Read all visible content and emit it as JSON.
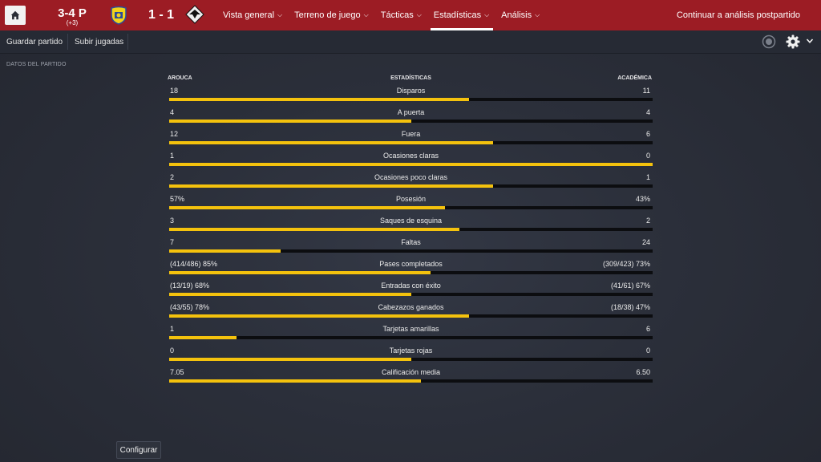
{
  "topbar": {
    "formation": "3-4 P",
    "formation_delta": "(+3)",
    "match_score": "1 - 1",
    "nav": [
      {
        "label": "Vista general",
        "active": false
      },
      {
        "label": "Terreno de juego",
        "active": false
      },
      {
        "label": "Tácticas",
        "active": false
      },
      {
        "label": "Estadísticas",
        "active": true
      },
      {
        "label": "Análisis",
        "active": false
      }
    ],
    "continue_label": "Continuar a análisis postpartido"
  },
  "subbar": {
    "save_label": "Guardar partido",
    "upload_label": "Subir jugadas"
  },
  "section_title": "DATOS DEL PARTIDO",
  "stats": {
    "home_team": "AROUCA",
    "header": "ESTADÍSTICAS",
    "away_team": "ACADÉMICA",
    "rows": [
      {
        "label": "Disparos",
        "home": "18",
        "away": "11",
        "home_share": 0.62
      },
      {
        "label": "A puerta",
        "home": "4",
        "away": "4",
        "home_share": 0.5
      },
      {
        "label": "Fuera",
        "home": "12",
        "away": "6",
        "home_share": 0.67
      },
      {
        "label": "Ocasiones claras",
        "home": "1",
        "away": "0",
        "home_share": 1.0
      },
      {
        "label": "Ocasiones poco claras",
        "home": "2",
        "away": "1",
        "home_share": 0.67
      },
      {
        "label": "Posesión",
        "home": "57%",
        "away": "43%",
        "home_share": 0.57
      },
      {
        "label": "Saques de esquina",
        "home": "3",
        "away": "2",
        "home_share": 0.6
      },
      {
        "label": "Faltas",
        "home": "7",
        "away": "24",
        "home_share": 0.23
      },
      {
        "label": "Pases completados",
        "home": "(414/486) 85%",
        "away": "(309/423) 73%",
        "home_share": 0.54
      },
      {
        "label": "Entradas con éxito",
        "home": "(13/19) 68%",
        "away": "(41/61) 67%",
        "home_share": 0.5
      },
      {
        "label": "Cabezazos ganados",
        "home": "(43/55) 78%",
        "away": "(18/38) 47%",
        "home_share": 0.62
      },
      {
        "label": "Tarjetas amarillas",
        "home": "1",
        "away": "6",
        "home_share": 0.14
      },
      {
        "label": "Tarjetas rojas",
        "home": "0",
        "away": "0",
        "home_share": 0.5
      },
      {
        "label": "Calificación media",
        "home": "7.05",
        "away": "6.50",
        "home_share": 0.52
      }
    ]
  },
  "configure_label": "Configurar",
  "icons": {
    "home": "home-icon",
    "record": "record-icon",
    "settings": "gear-icon",
    "dropdown": "chevron-down-icon"
  },
  "colors": {
    "topbar": "#9c1c24",
    "home_bar": "#f4c20d",
    "away_bar": "#0c0d10"
  }
}
